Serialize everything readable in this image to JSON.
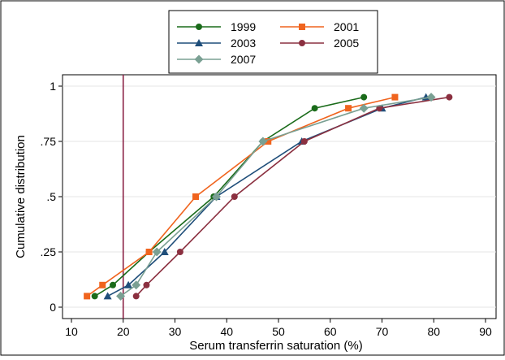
{
  "chart_data": {
    "type": "line",
    "title": "",
    "xlabel": "Serum transferrin saturation (%)",
    "ylabel": "Cumulative distribution",
    "xlim": [
      10,
      90
    ],
    "ylim": [
      0,
      1
    ],
    "x_ticks": [
      10,
      20,
      30,
      40,
      50,
      60,
      70,
      80,
      90
    ],
    "y_ticks": [
      0,
      0.25,
      0.5,
      0.75,
      1
    ],
    "y_tick_labels": [
      "0",
      ".25",
      ".5",
      ".75",
      "1"
    ],
    "reference_line": {
      "x": 20,
      "color": "#8b2346"
    },
    "grid": "horizontal",
    "legend_position": "top-center",
    "series": [
      {
        "name": "1999",
        "color": "#1a6b1a",
        "marker": "circle",
        "points": [
          [
            14.5,
            0.05
          ],
          [
            18,
            0.1
          ],
          [
            25,
            0.25
          ],
          [
            37.5,
            0.5
          ],
          [
            47,
            0.75
          ],
          [
            57,
            0.9
          ],
          [
            66.5,
            0.95
          ]
        ]
      },
      {
        "name": "2001",
        "color": "#f0641e",
        "marker": "square",
        "points": [
          [
            13,
            0.05
          ],
          [
            16,
            0.1
          ],
          [
            25,
            0.25
          ],
          [
            34,
            0.5
          ],
          [
            48,
            0.75
          ],
          [
            63.5,
            0.9
          ],
          [
            72.5,
            0.95
          ]
        ]
      },
      {
        "name": "2003",
        "color": "#1f4e7a",
        "marker": "triangle",
        "points": [
          [
            17,
            0.05
          ],
          [
            21,
            0.1
          ],
          [
            28,
            0.25
          ],
          [
            38,
            0.5
          ],
          [
            54.5,
            0.75
          ],
          [
            70,
            0.9
          ],
          [
            78.5,
            0.95
          ]
        ]
      },
      {
        "name": "2005",
        "color": "#8b3040",
        "marker": "circle",
        "points": [
          [
            22.5,
            0.05
          ],
          [
            24.5,
            0.1
          ],
          [
            31,
            0.25
          ],
          [
            41.5,
            0.5
          ],
          [
            55,
            0.75
          ],
          [
            69.5,
            0.9
          ],
          [
            83,
            0.95
          ]
        ]
      },
      {
        "name": "2007",
        "color": "#7aa093",
        "marker": "diamond",
        "points": [
          [
            19.5,
            0.05
          ],
          [
            22.5,
            0.1
          ],
          [
            26.5,
            0.25
          ],
          [
            38,
            0.5
          ],
          [
            47,
            0.75
          ],
          [
            66.5,
            0.9
          ],
          [
            79.5,
            0.95
          ]
        ]
      }
    ]
  }
}
